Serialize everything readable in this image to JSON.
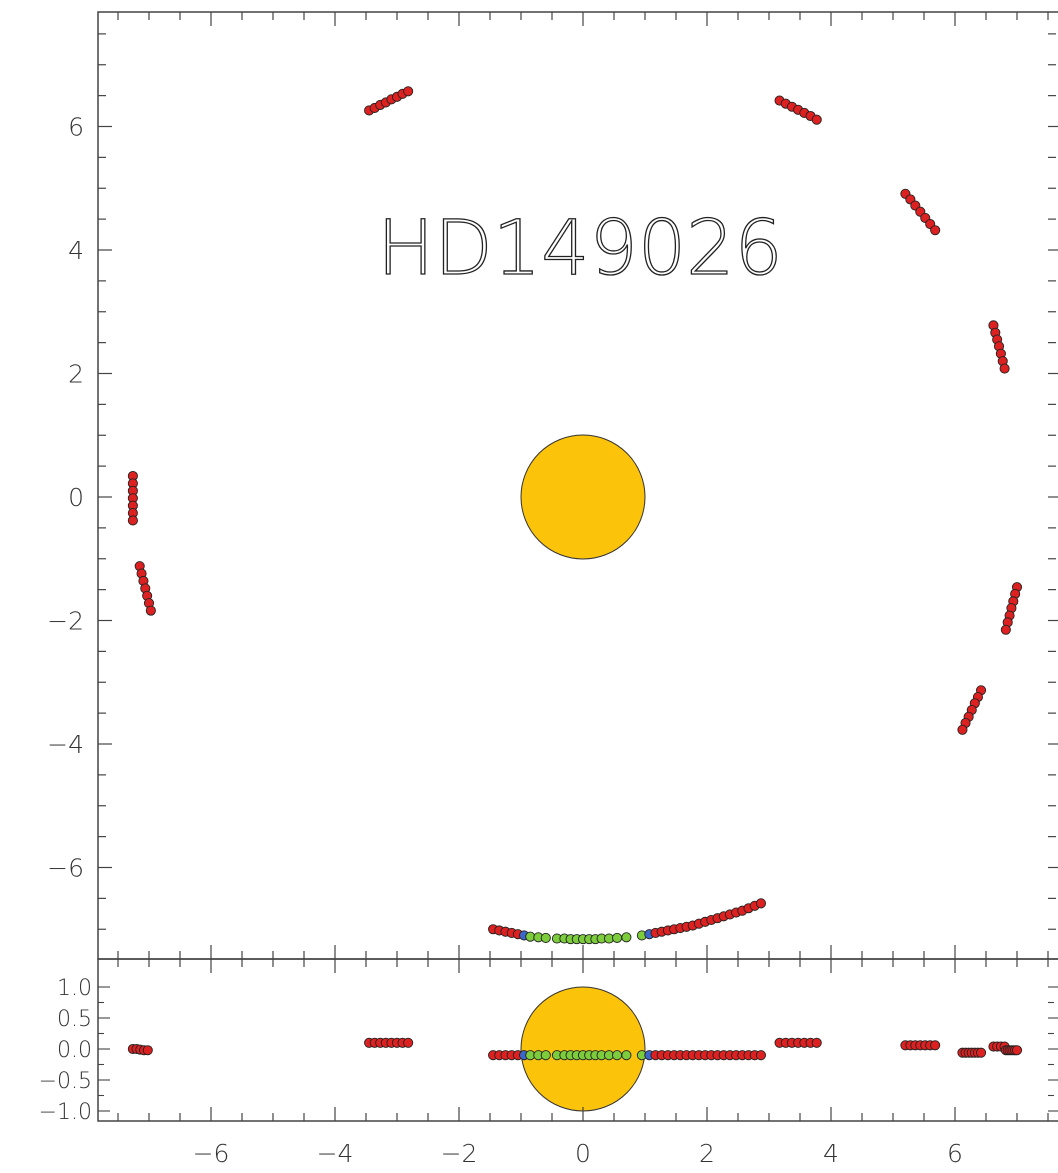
{
  "chart_data": [
    {
      "type": "scatter",
      "title": "HD149026",
      "xlim": [
        -7.8,
        7.8
      ],
      "ylim": [
        -7.85,
        7.85
      ],
      "xlabel": "",
      "ylabel": "",
      "y_ticks": [
        "6",
        "4",
        "2",
        "0",
        "−2",
        "−4",
        "−6"
      ],
      "star": {
        "x": 0,
        "y": 0,
        "radius": 1.0,
        "color": "#fcc30b"
      },
      "colors": {
        "red": "#dd2121",
        "green": "#7ccc3c",
        "blue": "#3b67c8"
      },
      "series": [
        {
          "color": "red",
          "points": [
            [
              -3.45,
              6.26
            ],
            [
              -3.36,
              6.3
            ],
            [
              -3.27,
              6.35
            ],
            [
              -3.18,
              6.39
            ],
            [
              -3.09,
              6.44
            ],
            [
              -3.0,
              6.48
            ],
            [
              -2.91,
              6.53
            ],
            [
              -2.82,
              6.57
            ]
          ]
        },
        {
          "color": "red",
          "points": [
            [
              3.17,
              6.42
            ],
            [
              3.27,
              6.37
            ],
            [
              3.37,
              6.32
            ],
            [
              3.47,
              6.27
            ],
            [
              3.57,
              6.22
            ],
            [
              3.67,
              6.17
            ],
            [
              3.77,
              6.11
            ]
          ]
        },
        {
          "color": "red",
          "points": [
            [
              5.2,
              4.91
            ],
            [
              5.28,
              4.82
            ],
            [
              5.36,
              4.72
            ],
            [
              5.44,
              4.62
            ],
            [
              5.52,
              4.52
            ],
            [
              5.6,
              4.42
            ],
            [
              5.68,
              4.32
            ]
          ]
        },
        {
          "color": "red",
          "points": [
            [
              6.62,
              2.78
            ],
            [
              6.65,
              2.66
            ],
            [
              6.68,
              2.55
            ],
            [
              6.71,
              2.44
            ],
            [
              6.74,
              2.32
            ],
            [
              6.77,
              2.2
            ],
            [
              6.8,
              2.08
            ]
          ]
        },
        {
          "color": "red",
          "points": [
            [
              -7.26,
              0.34
            ],
            [
              -7.26,
              0.22
            ],
            [
              -7.26,
              0.1
            ],
            [
              -7.26,
              -0.02
            ],
            [
              -7.26,
              -0.14
            ],
            [
              -7.26,
              -0.26
            ],
            [
              -7.26,
              -0.38
            ]
          ]
        },
        {
          "color": "red",
          "points": [
            [
              -7.15,
              -1.12
            ],
            [
              -7.12,
              -1.24
            ],
            [
              -7.09,
              -1.36
            ],
            [
              -7.06,
              -1.48
            ],
            [
              -7.03,
              -1.6
            ],
            [
              -7.0,
              -1.72
            ],
            [
              -6.97,
              -1.84
            ]
          ]
        },
        {
          "color": "red",
          "points": [
            [
              7.0,
              -1.46
            ],
            [
              6.97,
              -1.57
            ],
            [
              6.94,
              -1.69
            ],
            [
              6.91,
              -1.8
            ],
            [
              6.88,
              -1.92
            ],
            [
              6.85,
              -2.03
            ],
            [
              6.82,
              -2.15
            ]
          ]
        },
        {
          "color": "red",
          "points": [
            [
              6.42,
              -3.13
            ],
            [
              6.37,
              -3.24
            ],
            [
              6.32,
              -3.34
            ],
            [
              6.27,
              -3.45
            ],
            [
              6.22,
              -3.56
            ],
            [
              6.17,
              -3.66
            ],
            [
              6.12,
              -3.77
            ]
          ]
        },
        {
          "color": "red",
          "points": [
            [
              -1.45,
              -7.0
            ],
            [
              -1.35,
              -7.02
            ],
            [
              -1.25,
              -7.04
            ],
            [
              -1.15,
              -7.06
            ],
            [
              -1.05,
              -7.08
            ]
          ]
        },
        {
          "color": "blue",
          "points": [
            [
              -0.95,
              -7.1
            ]
          ]
        },
        {
          "color": "green",
          "points": [
            [
              -0.85,
              -7.12
            ],
            [
              -0.72,
              -7.13
            ],
            [
              -0.6,
              -7.14
            ],
            [
              -0.42,
              -7.15
            ],
            [
              -0.3,
              -7.15
            ],
            [
              -0.2,
              -7.16
            ],
            [
              -0.1,
              -7.16
            ],
            [
              0.0,
              -7.16
            ],
            [
              0.1,
              -7.16
            ],
            [
              0.2,
              -7.16
            ],
            [
              0.3,
              -7.15
            ],
            [
              0.42,
              -7.15
            ],
            [
              0.55,
              -7.14
            ],
            [
              0.7,
              -7.13
            ],
            [
              0.95,
              -7.1
            ]
          ]
        },
        {
          "color": "blue",
          "points": [
            [
              1.07,
              -7.08
            ]
          ]
        },
        {
          "color": "red",
          "points": [
            [
              1.17,
              -7.06
            ],
            [
              1.27,
              -7.04
            ],
            [
              1.37,
              -7.02
            ],
            [
              1.47,
              -7.0
            ],
            [
              1.57,
              -6.98
            ],
            [
              1.67,
              -6.96
            ],
            [
              1.77,
              -6.94
            ],
            [
              1.87,
              -6.91
            ],
            [
              1.97,
              -6.88
            ],
            [
              2.07,
              -6.85
            ],
            [
              2.17,
              -6.82
            ],
            [
              2.27,
              -6.79
            ],
            [
              2.37,
              -6.76
            ],
            [
              2.47,
              -6.73
            ],
            [
              2.57,
              -6.7
            ],
            [
              2.67,
              -6.66
            ],
            [
              2.77,
              -6.62
            ],
            [
              2.87,
              -6.58
            ]
          ]
        }
      ]
    },
    {
      "type": "scatter",
      "xlim": [
        -7.8,
        7.8
      ],
      "ylim": [
        -1.15,
        1.15
      ],
      "x_ticks": [
        "−6",
        "−4",
        "−2",
        "0",
        "2",
        "4",
        "6"
      ],
      "y_ticks": [
        "1.0",
        "0.5",
        "0.0",
        "−0.5",
        "−1.0"
      ],
      "star": {
        "x": 0,
        "y": 0,
        "radius": 1.0,
        "color": "#fcc30b"
      },
      "series": [
        {
          "color": "red",
          "points": [
            [
              -7.26,
              0.0
            ],
            [
              -7.2,
              0.0
            ],
            [
              -7.14,
              -0.01
            ],
            [
              -7.08,
              -0.02
            ],
            [
              -7.02,
              -0.02
            ]
          ]
        },
        {
          "color": "red",
          "points": [
            [
              -3.45,
              0.1
            ],
            [
              -3.36,
              0.1
            ],
            [
              -3.27,
              0.1
            ],
            [
              -3.18,
              0.1
            ],
            [
              -3.09,
              0.1
            ],
            [
              -3.0,
              0.1
            ],
            [
              -2.91,
              0.1
            ],
            [
              -2.82,
              0.1
            ]
          ]
        },
        {
          "color": "red",
          "points": [
            [
              -1.45,
              -0.1
            ],
            [
              -1.35,
              -0.1
            ],
            [
              -1.25,
              -0.1
            ],
            [
              -1.15,
              -0.1
            ],
            [
              -1.05,
              -0.1
            ]
          ]
        },
        {
          "color": "blue",
          "points": [
            [
              -0.95,
              -0.1
            ]
          ]
        },
        {
          "color": "green",
          "points": [
            [
              -0.85,
              -0.1
            ],
            [
              -0.72,
              -0.1
            ],
            [
              -0.6,
              -0.1
            ],
            [
              -0.42,
              -0.1
            ],
            [
              -0.3,
              -0.1
            ],
            [
              -0.2,
              -0.1
            ],
            [
              -0.1,
              -0.1
            ],
            [
              0.0,
              -0.1
            ],
            [
              0.1,
              -0.1
            ],
            [
              0.2,
              -0.1
            ],
            [
              0.3,
              -0.1
            ],
            [
              0.42,
              -0.1
            ],
            [
              0.55,
              -0.1
            ],
            [
              0.7,
              -0.1
            ],
            [
              0.95,
              -0.1
            ]
          ]
        },
        {
          "color": "blue",
          "points": [
            [
              1.07,
              -0.1
            ]
          ]
        },
        {
          "color": "red",
          "points": [
            [
              1.17,
              -0.1
            ],
            [
              1.27,
              -0.1
            ],
            [
              1.37,
              -0.1
            ],
            [
              1.47,
              -0.1
            ],
            [
              1.57,
              -0.1
            ],
            [
              1.67,
              -0.1
            ],
            [
              1.77,
              -0.1
            ],
            [
              1.87,
              -0.1
            ],
            [
              1.97,
              -0.1
            ],
            [
              2.07,
              -0.1
            ],
            [
              2.17,
              -0.1
            ],
            [
              2.27,
              -0.1
            ],
            [
              2.37,
              -0.1
            ],
            [
              2.47,
              -0.1
            ],
            [
              2.57,
              -0.1
            ],
            [
              2.67,
              -0.1
            ],
            [
              2.77,
              -0.1
            ],
            [
              2.87,
              -0.1
            ]
          ]
        },
        {
          "color": "red",
          "points": [
            [
              3.17,
              0.1
            ],
            [
              3.27,
              0.1
            ],
            [
              3.37,
              0.1
            ],
            [
              3.47,
              0.1
            ],
            [
              3.57,
              0.1
            ],
            [
              3.67,
              0.1
            ],
            [
              3.77,
              0.1
            ]
          ]
        },
        {
          "color": "red",
          "points": [
            [
              5.2,
              0.06
            ],
            [
              5.28,
              0.06
            ],
            [
              5.36,
              0.06
            ],
            [
              5.44,
              0.06
            ],
            [
              5.52,
              0.06
            ],
            [
              5.6,
              0.06
            ],
            [
              5.68,
              0.06
            ]
          ]
        },
        {
          "color": "red",
          "points": [
            [
              6.12,
              -0.06
            ],
            [
              6.17,
              -0.06
            ],
            [
              6.22,
              -0.06
            ],
            [
              6.27,
              -0.06
            ],
            [
              6.32,
              -0.06
            ],
            [
              6.37,
              -0.06
            ],
            [
              6.42,
              -0.06
            ]
          ]
        },
        {
          "color": "red",
          "points": [
            [
              6.62,
              0.04
            ],
            [
              6.68,
              0.04
            ],
            [
              6.74,
              0.04
            ],
            [
              6.8,
              0.04
            ],
            [
              6.82,
              -0.02
            ],
            [
              6.85,
              -0.02
            ],
            [
              6.88,
              -0.02
            ],
            [
              6.91,
              -0.02
            ],
            [
              6.94,
              -0.02
            ],
            [
              6.97,
              -0.02
            ],
            [
              7.0,
              -0.02
            ]
          ]
        }
      ]
    }
  ]
}
